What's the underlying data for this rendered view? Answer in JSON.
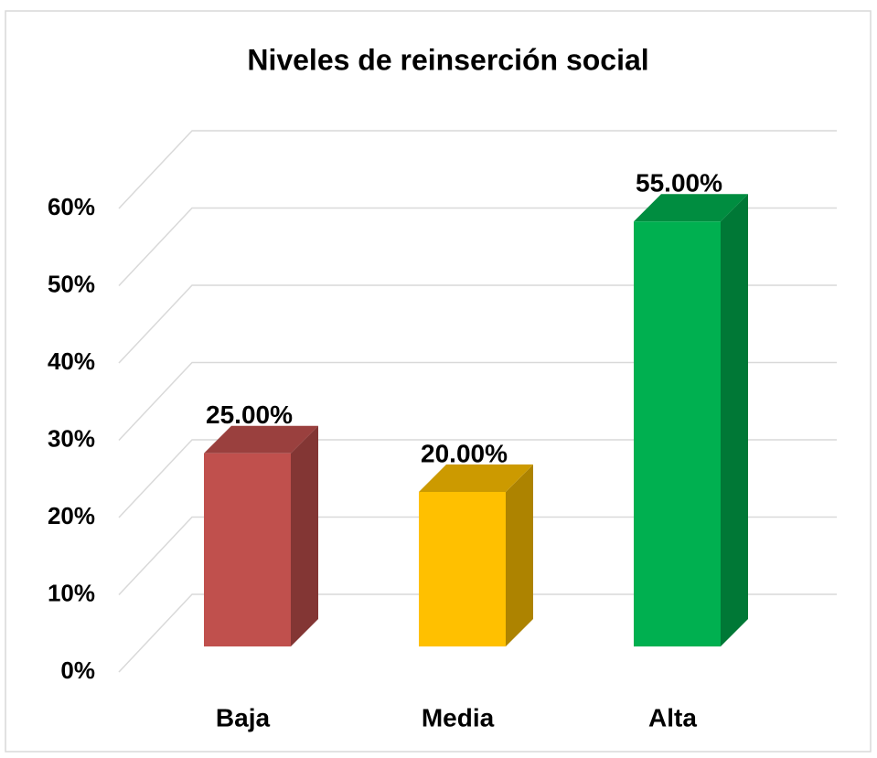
{
  "chart_data": {
    "type": "bar3d",
    "title": "Niveles de reinserción social",
    "categories": [
      "Baja",
      "Media",
      "Alta"
    ],
    "values": [
      25,
      20,
      55
    ],
    "value_labels": [
      "25.00%",
      "20.00%",
      "55.00%"
    ],
    "colors": [
      "#c0504d",
      "#ffc000",
      "#00b050"
    ],
    "ylim": [
      0,
      60
    ],
    "yticks": [
      {
        "value": 0,
        "label": "0%"
      },
      {
        "value": 10,
        "label": "10%"
      },
      {
        "value": 20,
        "label": "20%"
      },
      {
        "value": 30,
        "label": "30%"
      },
      {
        "value": 40,
        "label": "40%"
      },
      {
        "value": 50,
        "label": "50%"
      },
      {
        "value": 60,
        "label": "60%"
      }
    ],
    "grid": true
  }
}
